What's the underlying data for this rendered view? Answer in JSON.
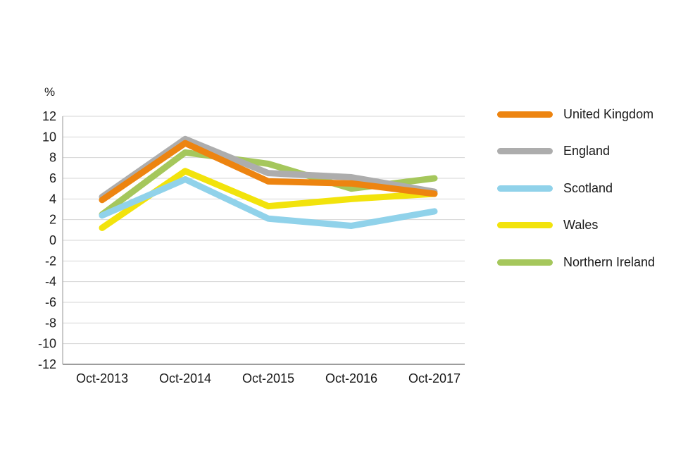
{
  "chart_data": {
    "type": "line",
    "title": "",
    "ylabel": "%",
    "xlabel": "",
    "x": [
      "Oct-2013",
      "Oct-2014",
      "Oct-2015",
      "Oct-2016",
      "Oct-2017"
    ],
    "ylim": [
      -12,
      12
    ],
    "yticks": [
      12,
      10,
      8,
      6,
      4,
      2,
      0,
      -2,
      -4,
      -6,
      -8,
      -10,
      -12
    ],
    "grid": true,
    "legend_position": "right",
    "series": [
      {
        "name": "United Kingdom",
        "color": "#ED8410",
        "values": [
          3.9,
          9.4,
          5.7,
          5.5,
          4.5
        ]
      },
      {
        "name": "England",
        "color": "#ADADAD",
        "values": [
          4.2,
          9.8,
          6.5,
          6.1,
          4.7
        ]
      },
      {
        "name": "Scotland",
        "color": "#90D2EA",
        "values": [
          2.4,
          5.9,
          2.1,
          1.4,
          2.8
        ]
      },
      {
        "name": "Wales",
        "color": "#F2E30C",
        "values": [
          1.2,
          6.7,
          3.3,
          4.0,
          4.5
        ]
      },
      {
        "name": "Northern Ireland",
        "color": "#A5C75C",
        "values": [
          2.5,
          8.5,
          7.4,
          5.0,
          6.0
        ]
      }
    ],
    "style": {
      "grid_color": "#D6D6D6",
      "y_axis_color": "#A8A8A8",
      "x_axis_color": "#7D7D7D",
      "tick_label_color": "#1a1a1a",
      "line_width": 9
    }
  }
}
